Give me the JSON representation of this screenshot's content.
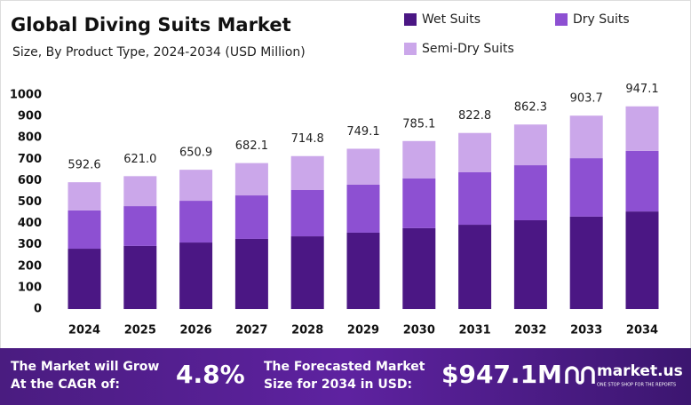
{
  "chart_data": {
    "type": "stacked-bar",
    "title": "Global Diving Suits Market",
    "subtitle": "Size, By Product Type, 2024-2034 (USD Million)",
    "categories": [
      "2024",
      "2025",
      "2026",
      "2027",
      "2028",
      "2029",
      "2030",
      "2031",
      "2032",
      "2033",
      "2034"
    ],
    "series": [
      {
        "name": "Wet Suits",
        "color": "#4b1784",
        "values": [
          282,
          295,
          311,
          328,
          340,
          357,
          378,
          394,
          415,
          432,
          456
        ]
      },
      {
        "name": "Dry Suits",
        "color": "#8d50d2",
        "values": [
          179,
          186,
          195,
          203,
          216,
          224,
          232,
          245,
          257,
          273,
          283
        ]
      },
      {
        "name": "Semi-Dry Suits",
        "color": "#cba7ea",
        "values": [
          131.6,
          140.0,
          144.9,
          151.1,
          158.8,
          168.1,
          175.1,
          183.8,
          190.3,
          198.7,
          208.1
        ]
      }
    ],
    "totals": {
      "values": [
        592.6,
        621.0,
        650.9,
        682.1,
        714.8,
        749.1,
        785.1,
        822.8,
        862.3,
        903.7,
        947.1
      ],
      "value_labels": [
        "592.6",
        "621.0",
        "650.9",
        "682.1",
        "714.8",
        "749.1",
        "785.1",
        "822.8",
        "862.3",
        "903.7",
        "947.1"
      ]
    },
    "ylim": [
      0,
      1000
    ],
    "yticks": [
      0,
      100,
      200,
      300,
      400,
      500,
      600,
      700,
      800,
      900,
      1000
    ],
    "grid": false,
    "legend": "top-right"
  },
  "footer": {
    "cagr_label": [
      "The Market will Grow",
      "At the CAGR of:"
    ],
    "cagr": "4.8%",
    "forecast_label": [
      "The Forecasted Market",
      "Size for 2034 in USD:"
    ],
    "forecast": "$947.1M",
    "brand": "market.us",
    "tagline": "ONE STOP SHOP FOR THE REPORTS"
  }
}
